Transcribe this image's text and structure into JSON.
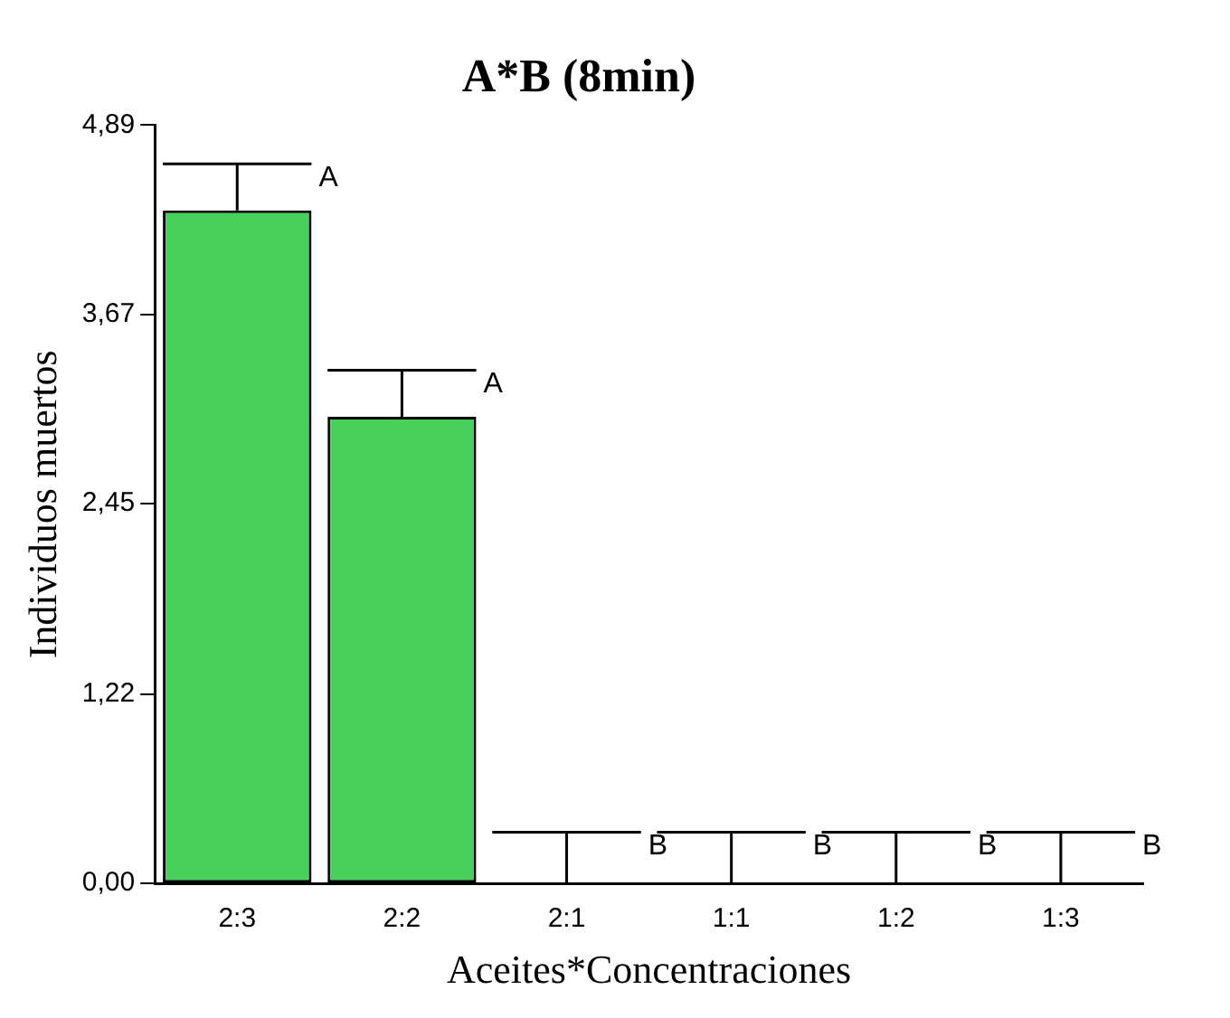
{
  "chart_data": {
    "type": "bar",
    "title": "A*B (8min)",
    "xlabel": "Aceites*Concentraciones",
    "ylabel": "Individuos muertos",
    "categories": [
      "2:3",
      "2:2",
      "2:1",
      "1:1",
      "1:2",
      "1:3"
    ],
    "values": [
      4.34,
      3.01,
      0,
      0,
      0,
      0
    ],
    "errors": [
      [
        4.34,
        4.64
      ],
      [
        3.01,
        3.31
      ],
      [
        0,
        0.33
      ],
      [
        0,
        0.33
      ],
      [
        0,
        0.33
      ],
      [
        0,
        0.33
      ]
    ],
    "color": "#48d05c",
    "ylim": [
      0,
      4.89
    ],
    "yticks": [
      {
        "value": 0,
        "label": "0,00"
      },
      {
        "value": 1.22,
        "label": "1,22"
      },
      {
        "value": 2.45,
        "label": "2,45"
      },
      {
        "value": 3.67,
        "label": "3,67"
      },
      {
        "value": 4.89,
        "label": "4,89"
      }
    ],
    "grid": false,
    "legend": false,
    "annotations": [
      {
        "text": "A",
        "x": "2:3",
        "y": 4.64
      },
      {
        "text": "A",
        "x": "2:2",
        "y": 3.31
      },
      {
        "text": "B",
        "x": "2:1",
        "y": 0.33
      },
      {
        "text": "B",
        "x": "1:1",
        "y": 0.33
      },
      {
        "text": "B",
        "x": "1:2",
        "y": 0.33
      },
      {
        "text": "B",
        "x": "1:3",
        "y": 0.33
      }
    ]
  }
}
